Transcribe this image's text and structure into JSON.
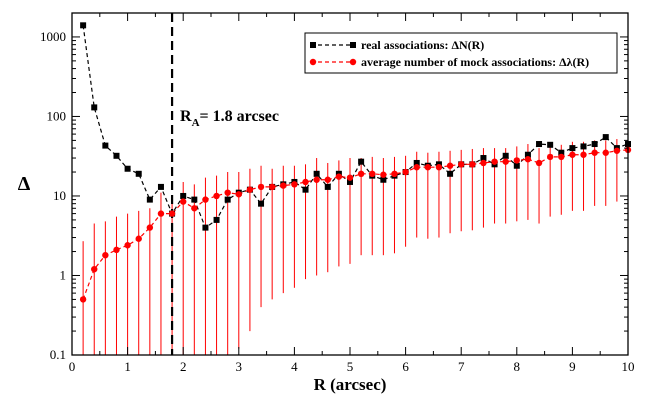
{
  "chart_data": {
    "type": "scatter",
    "xlabel": "R (arcsec)",
    "ylabel": "Δ",
    "xlim": [
      0,
      10
    ],
    "ylim": [
      0.1,
      2000
    ],
    "yscale": "log",
    "x_ticks": [
      0,
      1,
      2,
      3,
      4,
      5,
      6,
      7,
      8,
      9,
      10
    ],
    "x_tick_labels": [
      "0",
      "1",
      "2",
      "3",
      "4",
      "5",
      "6",
      "7",
      "8",
      "9",
      "10"
    ],
    "y_ticks": [
      0.1,
      1,
      10,
      100,
      1000
    ],
    "y_tick_labels": [
      "0.1",
      "1",
      "10",
      "100",
      "1000"
    ],
    "grid": false,
    "legend_position": "top-right",
    "annotation": {
      "text_main": "R",
      "text_sub": "A",
      "text_rest": "= 1.8 arcsec",
      "vline_x": 1.8
    },
    "series": [
      {
        "name": "real associations: ΔN(R)",
        "color": "#000000",
        "marker": "square",
        "line": "dashed",
        "x": [
          0.2,
          0.4,
          0.6,
          0.8,
          1.0,
          1.2,
          1.4,
          1.6,
          1.8,
          2.0,
          2.2,
          2.4,
          2.6,
          2.8,
          3.0,
          3.2,
          3.4,
          3.6,
          3.8,
          4.0,
          4.2,
          4.4,
          4.6,
          4.8,
          5.0,
          5.2,
          5.4,
          5.6,
          5.8,
          6.0,
          6.2,
          6.4,
          6.6,
          6.8,
          7.0,
          7.2,
          7.4,
          7.6,
          7.8,
          8.0,
          8.2,
          8.4,
          8.6,
          8.8,
          9.0,
          9.2,
          9.4,
          9.6,
          9.8,
          10.0
        ],
        "values": [
          1400,
          130,
          43,
          32,
          22,
          19,
          9,
          13,
          6,
          10,
          9,
          4,
          5,
          9,
          11,
          12,
          8,
          13,
          14,
          15,
          12,
          19,
          13,
          19,
          15,
          27,
          18,
          16,
          18,
          20,
          26,
          24,
          25,
          19,
          25,
          25,
          30,
          25,
          32,
          24,
          33,
          45,
          44,
          35,
          40,
          42,
          45,
          55,
          40,
          45
        ]
      },
      {
        "name": "average number of mock associations: Δλ(R)",
        "color": "#ff0000",
        "marker": "circle",
        "line": "dashed",
        "x": [
          0.2,
          0.4,
          0.6,
          0.8,
          1.0,
          1.2,
          1.4,
          1.6,
          1.8,
          2.0,
          2.2,
          2.4,
          2.6,
          2.8,
          3.0,
          3.2,
          3.4,
          3.6,
          3.8,
          4.0,
          4.2,
          4.4,
          4.6,
          4.8,
          5.0,
          5.2,
          5.4,
          5.6,
          5.8,
          6.0,
          6.2,
          6.4,
          6.6,
          6.8,
          7.0,
          7.2,
          7.4,
          7.6,
          7.8,
          8.0,
          8.2,
          8.4,
          8.6,
          8.8,
          9.0,
          9.2,
          9.4,
          9.6,
          9.8,
          10.0
        ],
        "values": [
          0.5,
          1.2,
          1.8,
          2.1,
          2.4,
          2.9,
          4,
          6,
          6,
          8.5,
          7,
          9,
          10,
          11,
          10.5,
          12,
          13,
          13,
          13.5,
          14,
          15,
          16,
          16,
          17.5,
          17,
          19,
          19,
          18.5,
          19,
          20,
          23,
          23,
          23,
          24,
          25,
          25,
          26,
          27,
          27,
          28,
          29,
          26,
          31,
          31,
          33,
          33,
          35,
          35,
          37,
          38
        ],
        "error_high": [
          2.7,
          4.5,
          4.8,
          5.5,
          6,
          6.5,
          7,
          11,
          8.5,
          15,
          14,
          17,
          18,
          20,
          20,
          22,
          24,
          22,
          24,
          24,
          25,
          30,
          26,
          28,
          30,
          30,
          31,
          30,
          31,
          32,
          36,
          35,
          36,
          37,
          38,
          39,
          40,
          40,
          40,
          42,
          45,
          40,
          45,
          44,
          48,
          48,
          50,
          50,
          52,
          55
        ],
        "error_low": [
          0.1,
          0.1,
          0.1,
          0.1,
          0.1,
          0.1,
          0.1,
          0.1,
          0.1,
          0.1,
          0.1,
          0.1,
          0.1,
          0.1,
          0.12,
          0.2,
          0.4,
          0.5,
          0.6,
          0.7,
          0.9,
          1.0,
          1.1,
          1.3,
          1.4,
          1.8,
          1.8,
          1.8,
          1.9,
          2.3,
          3.0,
          2.9,
          3.0,
          3.4,
          3.6,
          3.7,
          4.0,
          4.5,
          4.5,
          4.8,
          5.0,
          4.5,
          5.5,
          5.8,
          6.5,
          6.5,
          7.5,
          7.5,
          8.5,
          9.5
        ]
      }
    ]
  }
}
